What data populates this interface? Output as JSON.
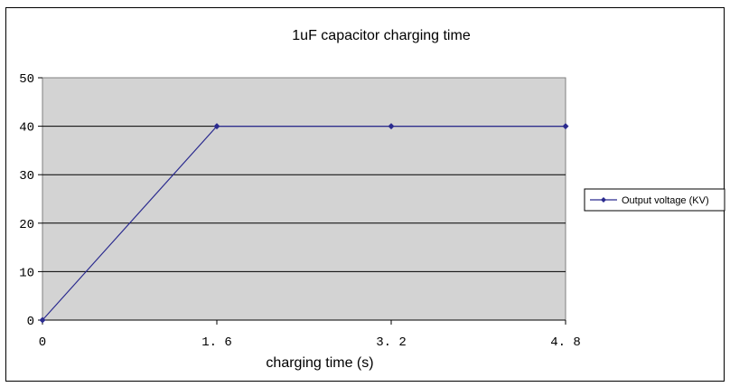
{
  "chart_data": {
    "type": "line",
    "title": "1uF capacitor charging time",
    "xlabel": "charging time (s)",
    "ylabel": "",
    "x": [
      0,
      1.6,
      3.2,
      4.8
    ],
    "x_tick_labels": [
      "0",
      "1. 6",
      "3. 2",
      "4. 8"
    ],
    "xlim": [
      0,
      4.8
    ],
    "ylim": [
      0,
      50
    ],
    "y_ticks": [
      0,
      10,
      20,
      30,
      40,
      50
    ],
    "grid": true,
    "legend_position": "right",
    "plot_background": "#d3d3d3",
    "series": [
      {
        "name": "Output voltage (KV)",
        "values": [
          0,
          40,
          40,
          40
        ],
        "color": "#2b2b8f"
      }
    ]
  }
}
